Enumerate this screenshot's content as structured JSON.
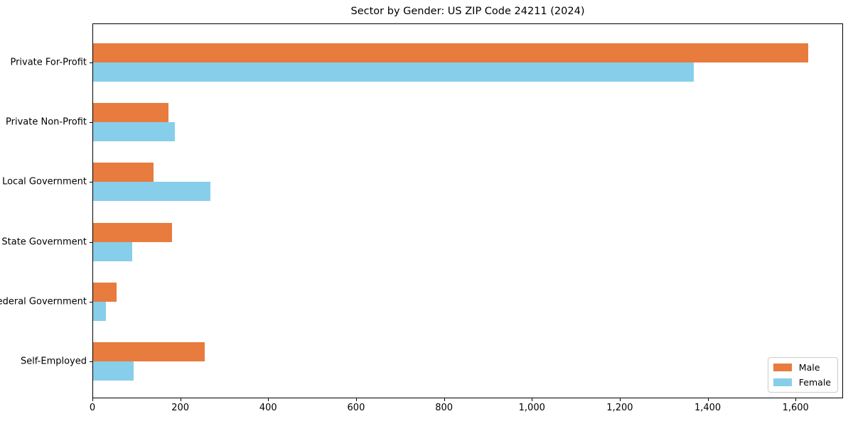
{
  "chart_data": {
    "type": "bar",
    "orientation": "horizontal",
    "title": "Sector by Gender: US ZIP Code 24211 (2024)",
    "categories": [
      "Private For-Profit",
      "Private Non-Profit",
      "Local Government",
      "State Government",
      "Federal Government",
      "Self-Employed"
    ],
    "series": [
      {
        "name": "Male",
        "color": "#E87B3E",
        "values": [
          1627,
          171,
          137,
          180,
          53,
          254
        ]
      },
      {
        "name": "Female",
        "color": "#87CEEB",
        "values": [
          1366,
          186,
          267,
          89,
          29,
          92
        ]
      }
    ],
    "xlabel": "",
    "ylabel": "",
    "xlim": [
      0,
      1708
    ],
    "x_ticks": {
      "values": [
        0,
        200,
        400,
        600,
        800,
        1000,
        1200,
        1400,
        1600
      ],
      "labels": [
        "0",
        "200",
        "400",
        "600",
        "800",
        "1,000",
        "1,200",
        "1,400",
        "1,600"
      ]
    },
    "grid": "off",
    "legend": {
      "position": "lower right",
      "entries": [
        "Male",
        "Female"
      ]
    }
  }
}
